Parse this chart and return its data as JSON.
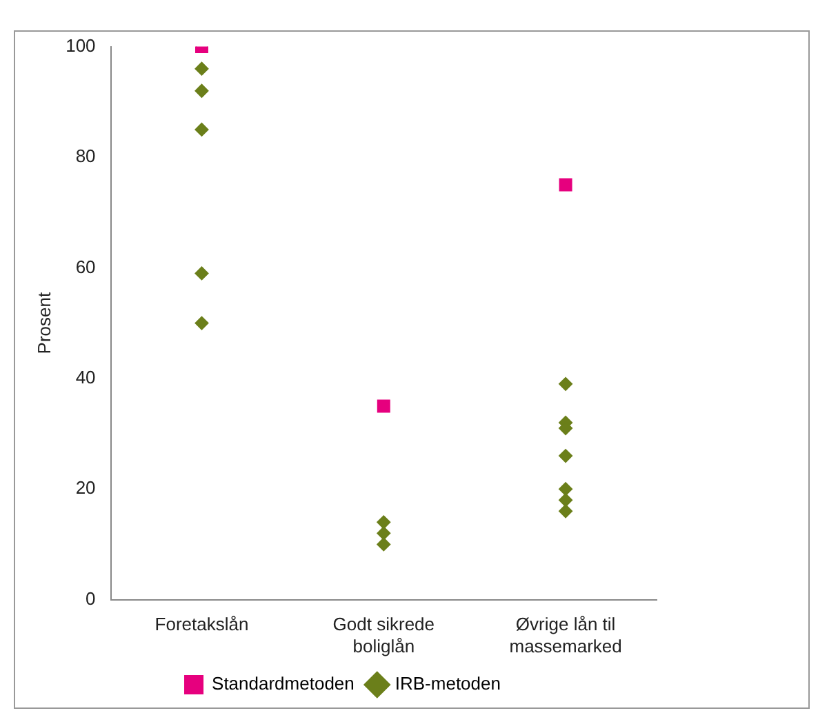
{
  "chart_data": {
    "type": "scatter",
    "ylabel": "Prosent",
    "categories": [
      "Foretakslån",
      "Godt sikrede boliglån",
      "Øvrige lån til massemarked"
    ],
    "ylim": [
      0,
      100
    ],
    "yticks": [
      0,
      20,
      40,
      60,
      80,
      100
    ],
    "grid": false,
    "legend": "bottom",
    "series": [
      {
        "name": "Standardmetoden",
        "color": "#e6007e",
        "marker": "square",
        "x": [
          "Foretakslån",
          "Godt sikrede boliglån",
          "Øvrige lån til massemarked"
        ],
        "values": [
          100,
          35,
          75
        ]
      },
      {
        "name": "IRB-metoden",
        "color": "#6b7f1a",
        "marker": "diamond",
        "x": [
          "Foretakslån",
          "Foretakslån",
          "Foretakslån",
          "Foretakslån",
          "Foretakslån",
          "Godt sikrede boliglån",
          "Godt sikrede boliglån",
          "Godt sikrede boliglån",
          "Øvrige lån til massemarked",
          "Øvrige lån til massemarked",
          "Øvrige lån til massemarked",
          "Øvrige lån til massemarked",
          "Øvrige lån til massemarked",
          "Øvrige lån til massemarked",
          "Øvrige lån til massemarked"
        ],
        "values": [
          96,
          92,
          85,
          59,
          50,
          14,
          12,
          10,
          39,
          32,
          31,
          26,
          20,
          18,
          16
        ]
      }
    ]
  }
}
